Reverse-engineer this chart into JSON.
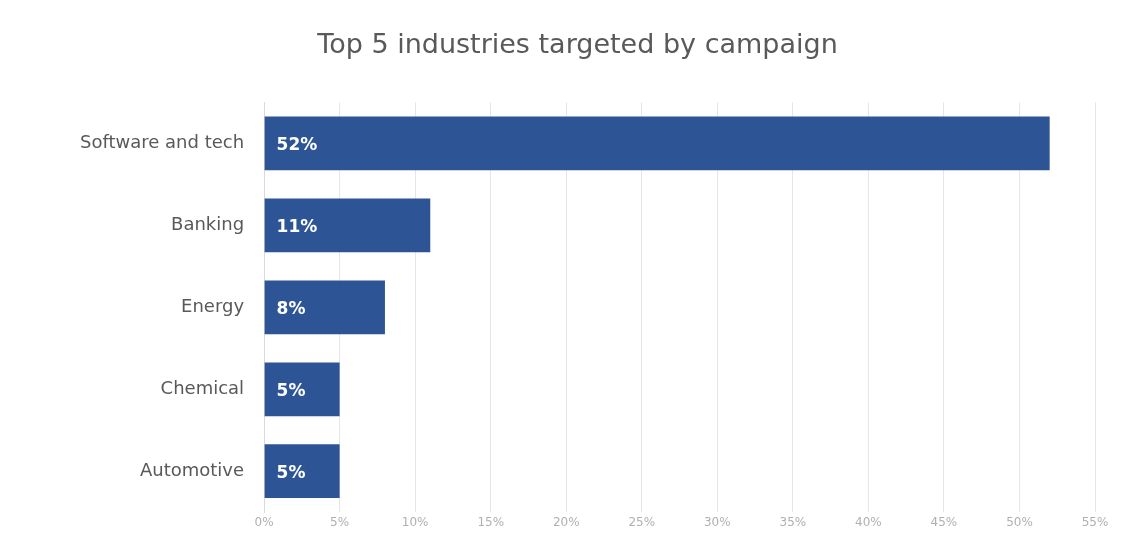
{
  "chart_data": {
    "type": "bar",
    "orientation": "horizontal",
    "title": "Top 5 industries targeted by campaign",
    "categories": [
      "Software and tech",
      "Banking",
      "Energy",
      "Chemical",
      "Automotive"
    ],
    "values": [
      52,
      11,
      8,
      5,
      5
    ],
    "value_labels": [
      "52%",
      "11%",
      "8%",
      "5%",
      "5%"
    ],
    "color": "#2d5596",
    "xlim": [
      0,
      55
    ],
    "xticks": [
      {
        "value": 0,
        "label": "0%"
      },
      {
        "value": 5,
        "label": "5%"
      },
      {
        "value": 10,
        "label": "10%"
      },
      {
        "value": 15,
        "label": "15%"
      },
      {
        "value": 20,
        "label": "20%"
      },
      {
        "value": 25,
        "label": "25%"
      },
      {
        "value": 30,
        "label": "30%"
      },
      {
        "value": 35,
        "label": "35%"
      },
      {
        "value": 40,
        "label": "40%"
      },
      {
        "value": 45,
        "label": "45%"
      },
      {
        "value": 50,
        "label": "50%"
      },
      {
        "value": 55,
        "label": "55%"
      }
    ],
    "grid": "x",
    "legend": false
  }
}
